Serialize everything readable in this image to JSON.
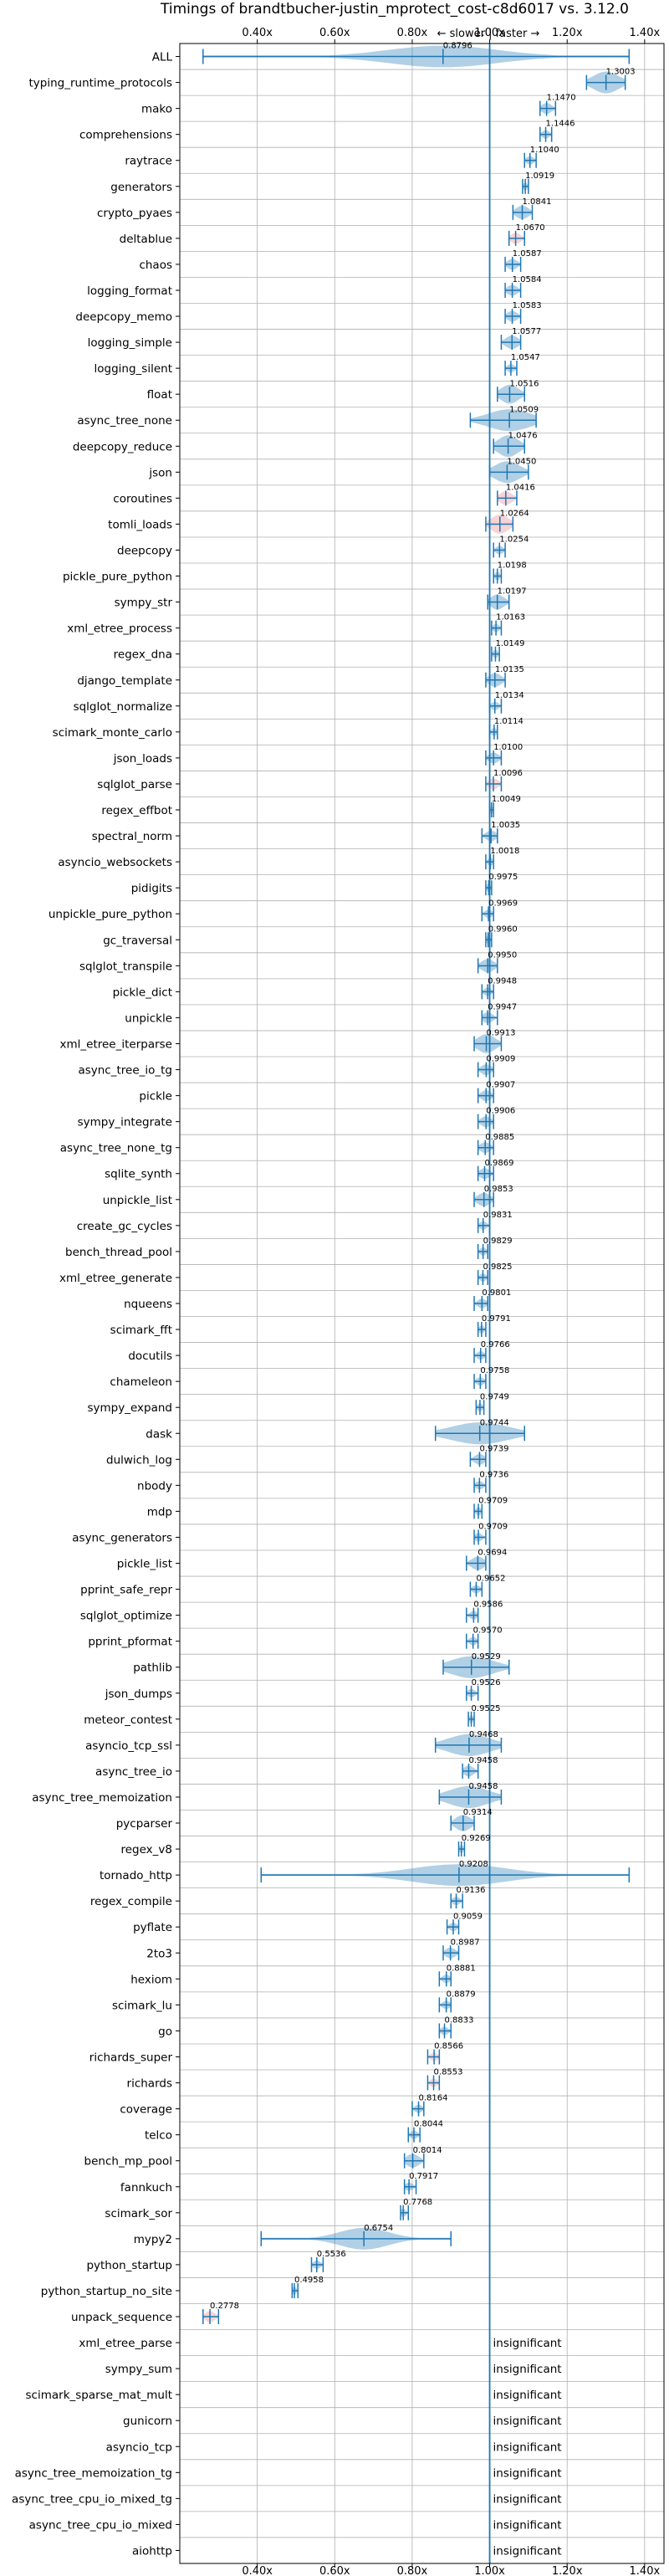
{
  "chart_data": {
    "type": "violin",
    "title": "Timings of brandtbucher-justin_mprotect_cost-c8d6017 vs. 3.12.0",
    "direction_label": "← slower | faster →",
    "x_ticks": [
      "0.40x",
      "0.60x",
      "0.80x",
      "1.00x",
      "1.20x",
      "1.40x"
    ],
    "x_tick_values": [
      0.4,
      0.6,
      0.8,
      1.0,
      1.2,
      1.4
    ],
    "xlim": [
      0.2,
      1.45
    ],
    "reference_line": 1.0,
    "insignificant_label": "insignificant",
    "categories": [
      "ALL",
      "typing_runtime_protocols",
      "mako",
      "comprehensions",
      "raytrace",
      "generators",
      "crypto_pyaes",
      "deltablue",
      "chaos",
      "logging_format",
      "deepcopy_memo",
      "logging_simple",
      "logging_silent",
      "float",
      "async_tree_none",
      "deepcopy_reduce",
      "json",
      "coroutines",
      "tomli_loads",
      "deepcopy",
      "pickle_pure_python",
      "sympy_str",
      "xml_etree_process",
      "regex_dna",
      "django_template",
      "sqlglot_normalize",
      "scimark_monte_carlo",
      "json_loads",
      "sqlglot_parse",
      "regex_effbot",
      "spectral_norm",
      "asyncio_websockets",
      "pidigits",
      "unpickle_pure_python",
      "gc_traversal",
      "sqlglot_transpile",
      "pickle_dict",
      "unpickle",
      "xml_etree_iterparse",
      "async_tree_io_tg",
      "pickle",
      "sympy_integrate",
      "async_tree_none_tg",
      "sqlite_synth",
      "unpickle_list",
      "create_gc_cycles",
      "bench_thread_pool",
      "xml_etree_generate",
      "nqueens",
      "scimark_fft",
      "docutils",
      "chameleon",
      "sympy_expand",
      "dask",
      "dulwich_log",
      "nbody",
      "mdp",
      "async_generators",
      "pickle_list",
      "pprint_safe_repr",
      "sqlglot_optimize",
      "pprint_pformat",
      "pathlib",
      "json_dumps",
      "meteor_contest",
      "asyncio_tcp_ssl",
      "async_tree_io",
      "async_tree_memoization",
      "pycparser",
      "regex_v8",
      "tornado_http",
      "regex_compile",
      "pyflate",
      "2to3",
      "hexiom",
      "scimark_lu",
      "go",
      "richards_super",
      "richards",
      "coverage",
      "telco",
      "bench_mp_pool",
      "fannkuch",
      "scimark_sor",
      "mypy2",
      "python_startup",
      "python_startup_no_site",
      "unpack_sequence",
      "xml_etree_parse",
      "sympy_sum",
      "scimark_sparse_mat_mult",
      "gunicorn",
      "asyncio_tcp",
      "async_tree_memoization_tg",
      "async_tree_cpu_io_mixed_tg",
      "async_tree_cpu_io_mixed",
      "aiohttp"
    ],
    "medians": [
      0.8796,
      1.3003,
      1.147,
      1.1446,
      1.104,
      1.0919,
      1.0841,
      1.067,
      1.0587,
      1.0584,
      1.0583,
      1.0577,
      1.0547,
      1.0516,
      1.0509,
      1.0476,
      1.045,
      1.0416,
      1.0264,
      1.0254,
      1.0198,
      1.0197,
      1.0163,
      1.0149,
      1.0135,
      1.0134,
      1.0114,
      1.01,
      1.0096,
      1.0049,
      1.0035,
      1.0018,
      0.9975,
      0.9969,
      0.996,
      0.995,
      0.9948,
      0.9947,
      0.9913,
      0.9909,
      0.9907,
      0.9906,
      0.9885,
      0.9869,
      0.9853,
      0.9831,
      0.9829,
      0.9825,
      0.9801,
      0.9791,
      0.9766,
      0.9758,
      0.9749,
      0.9744,
      0.9739,
      0.9736,
      0.9709,
      0.9709,
      0.9694,
      0.9652,
      0.9586,
      0.957,
      0.9529,
      0.9526,
      0.9525,
      0.9468,
      0.9458,
      0.9458,
      0.9314,
      0.9269,
      0.9208,
      0.9136,
      0.9059,
      0.8987,
      0.8881,
      0.8879,
      0.8833,
      0.8566,
      0.8553,
      0.8164,
      0.8044,
      0.8014,
      0.7917,
      0.7768,
      0.6754,
      0.5536,
      0.4958,
      0.2778,
      null,
      null,
      null,
      null,
      null,
      null,
      null,
      null,
      null
    ],
    "median_labels": [
      "0.8796",
      "1.3003",
      "1.1470",
      "1.1446",
      "1.1040",
      "1.0919",
      "1.0841",
      "1.0670",
      "1.0587",
      "1.0584",
      "1.0583",
      "1.0577",
      "1.0547",
      "1.0516",
      "1.0509",
      "1.0476",
      "1.0450",
      "1.0416",
      "1.0264",
      "1.0254",
      "1.0198",
      "1.0197",
      "1.0163",
      "1.0149",
      "1.0135",
      "1.0134",
      "1.0114",
      "1.0100",
      "1.0096",
      "1.0049",
      "1.0035",
      "1.0018",
      "0.9975",
      "0.9969",
      "0.9960",
      "0.9950",
      "0.9948",
      "0.9947",
      "0.9913",
      "0.9909",
      "0.9907",
      "0.9906",
      "0.9885",
      "0.9869",
      "0.9853",
      "0.9831",
      "0.9829",
      "0.9825",
      "0.9801",
      "0.9791",
      "0.9766",
      "0.9758",
      "0.9749",
      "0.9744",
      "0.9739",
      "0.9736",
      "0.9709",
      "0.9709",
      "0.9694",
      "0.9652",
      "0.9586",
      "0.9570",
      "0.9529",
      "0.9526",
      "0.9525",
      "0.9468",
      "0.9458",
      "0.9458",
      "0.9314",
      "0.9269",
      "0.9208",
      "0.9136",
      "0.9059",
      "0.8987",
      "0.8881",
      "0.8879",
      "0.8833",
      "0.8566",
      "0.8553",
      "0.8164",
      "0.8044",
      "0.8014",
      "0.7917",
      "0.7768",
      "0.6754",
      "0.5536",
      "0.4958",
      "0.2778",
      "",
      "",
      "",
      "",
      "",
      "",
      "",
      "",
      ""
    ],
    "ranges": [
      [
        0.26,
        1.36
      ],
      [
        1.25,
        1.35
      ],
      [
        1.13,
        1.17
      ],
      [
        1.13,
        1.16
      ],
      [
        1.09,
        1.12
      ],
      [
        1.085,
        1.1
      ],
      [
        1.06,
        1.11
      ],
      [
        1.05,
        1.09
      ],
      [
        1.04,
        1.08
      ],
      [
        1.04,
        1.08
      ],
      [
        1.04,
        1.08
      ],
      [
        1.03,
        1.08
      ],
      [
        1.04,
        1.07
      ],
      [
        1.02,
        1.09
      ],
      [
        0.95,
        1.12
      ],
      [
        1.01,
        1.09
      ],
      [
        1.0,
        1.1
      ],
      [
        1.02,
        1.07
      ],
      [
        0.99,
        1.06
      ],
      [
        1.01,
        1.04
      ],
      [
        1.01,
        1.03
      ],
      [
        0.995,
        1.05
      ],
      [
        1.005,
        1.03
      ],
      [
        1.005,
        1.025
      ],
      [
        0.99,
        1.04
      ],
      [
        1.0,
        1.03
      ],
      [
        1.0,
        1.02
      ],
      [
        0.99,
        1.03
      ],
      [
        0.99,
        1.03
      ],
      [
        1.0,
        1.01
      ],
      [
        0.98,
        1.02
      ],
      [
        0.99,
        1.01
      ],
      [
        0.99,
        1.005
      ],
      [
        0.98,
        1.01
      ],
      [
        0.99,
        1.005
      ],
      [
        0.97,
        1.02
      ],
      [
        0.98,
        1.01
      ],
      [
        0.98,
        1.02
      ],
      [
        0.96,
        1.03
      ],
      [
        0.97,
        1.01
      ],
      [
        0.97,
        1.01
      ],
      [
        0.97,
        1.01
      ],
      [
        0.97,
        1.01
      ],
      [
        0.97,
        1.01
      ],
      [
        0.96,
        1.01
      ],
      [
        0.97,
        1.0
      ],
      [
        0.97,
        0.995
      ],
      [
        0.97,
        0.995
      ],
      [
        0.96,
        0.995
      ],
      [
        0.97,
        0.99
      ],
      [
        0.96,
        0.99
      ],
      [
        0.96,
        0.99
      ],
      [
        0.965,
        0.985
      ],
      [
        0.86,
        1.09
      ],
      [
        0.95,
        0.99
      ],
      [
        0.96,
        0.99
      ],
      [
        0.96,
        0.98
      ],
      [
        0.96,
        0.99
      ],
      [
        0.94,
        0.99
      ],
      [
        0.95,
        0.98
      ],
      [
        0.94,
        0.97
      ],
      [
        0.94,
        0.97
      ],
      [
        0.88,
        1.05
      ],
      [
        0.94,
        0.97
      ],
      [
        0.945,
        0.96
      ],
      [
        0.86,
        1.03
      ],
      [
        0.93,
        0.97
      ],
      [
        0.87,
        1.03
      ],
      [
        0.9,
        0.96
      ],
      [
        0.92,
        0.935
      ],
      [
        0.41,
        1.36
      ],
      [
        0.9,
        0.93
      ],
      [
        0.89,
        0.92
      ],
      [
        0.88,
        0.92
      ],
      [
        0.87,
        0.9
      ],
      [
        0.87,
        0.9
      ],
      [
        0.87,
        0.9
      ],
      [
        0.84,
        0.87
      ],
      [
        0.84,
        0.87
      ],
      [
        0.8,
        0.83
      ],
      [
        0.79,
        0.82
      ],
      [
        0.78,
        0.83
      ],
      [
        0.78,
        0.81
      ],
      [
        0.77,
        0.79
      ],
      [
        0.41,
        0.9
      ],
      [
        0.54,
        0.57
      ],
      [
        0.49,
        0.505
      ],
      [
        0.26,
        0.3
      ],
      null,
      null,
      null,
      null,
      null,
      null,
      null,
      null,
      null
    ],
    "colors": {
      "body": "#1f77b4",
      "highlight": "#e8808a",
      "reference": "#1f77b4",
      "grid": "#b0b0b0"
    }
  }
}
